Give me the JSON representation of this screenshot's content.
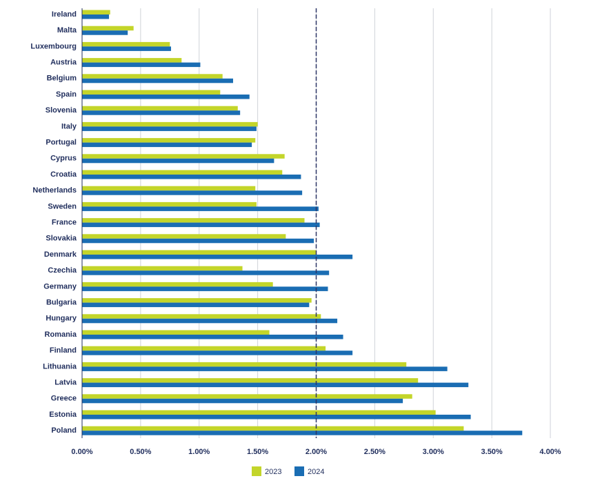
{
  "chart_data": {
    "type": "hbar",
    "categories": [
      "Ireland",
      "Malta",
      "Luxembourg",
      "Austria",
      "Belgium",
      "Spain",
      "Slovenia",
      "Italy",
      "Portugal",
      "Cyprus",
      "Croatia",
      "Netherlands",
      "Sweden",
      "France",
      "Slovakia",
      "Denmark",
      "Czechia",
      "Germany",
      "Bulgaria",
      "Hungary",
      "Romania",
      "Finland",
      "Lithuania",
      "Latvia",
      "Greece",
      "Estonia",
      "Poland"
    ],
    "series": [
      {
        "name": "2023",
        "color": "#c3d52a",
        "values": [
          0.24,
          0.44,
          0.75,
          0.85,
          1.2,
          1.18,
          1.33,
          1.5,
          1.48,
          1.73,
          1.71,
          1.48,
          1.49,
          1.9,
          1.74,
          2.0,
          1.37,
          1.63,
          1.96,
          2.04,
          1.6,
          2.08,
          2.77,
          2.87,
          2.82,
          3.02,
          3.26
        ]
      },
      {
        "name": "2024",
        "color": "#1a6db3",
        "values": [
          0.23,
          0.39,
          0.76,
          1.01,
          1.29,
          1.43,
          1.35,
          1.49,
          1.45,
          1.64,
          1.87,
          1.88,
          2.02,
          2.03,
          1.98,
          2.31,
          2.11,
          2.1,
          1.94,
          2.18,
          2.23,
          2.31,
          3.12,
          3.3,
          2.74,
          3.32,
          3.76
        ]
      }
    ],
    "xlim": [
      0,
      4
    ],
    "xticks": [
      {
        "value": 0,
        "label": "0.00%"
      },
      {
        "value": 0.5,
        "label": "0.50%"
      },
      {
        "value": 1,
        "label": "1.00%"
      },
      {
        "value": 1.5,
        "label": "1.50%"
      },
      {
        "value": 2,
        "label": "2.00%"
      },
      {
        "value": 2.5,
        "label": "2.50%"
      },
      {
        "value": 3,
        "label": "3.00%"
      },
      {
        "value": 3.5,
        "label": "3.50%"
      },
      {
        "value": 4,
        "label": "4.00%"
      }
    ],
    "reference_line": 2,
    "grid": true,
    "legend": "bottom"
  }
}
